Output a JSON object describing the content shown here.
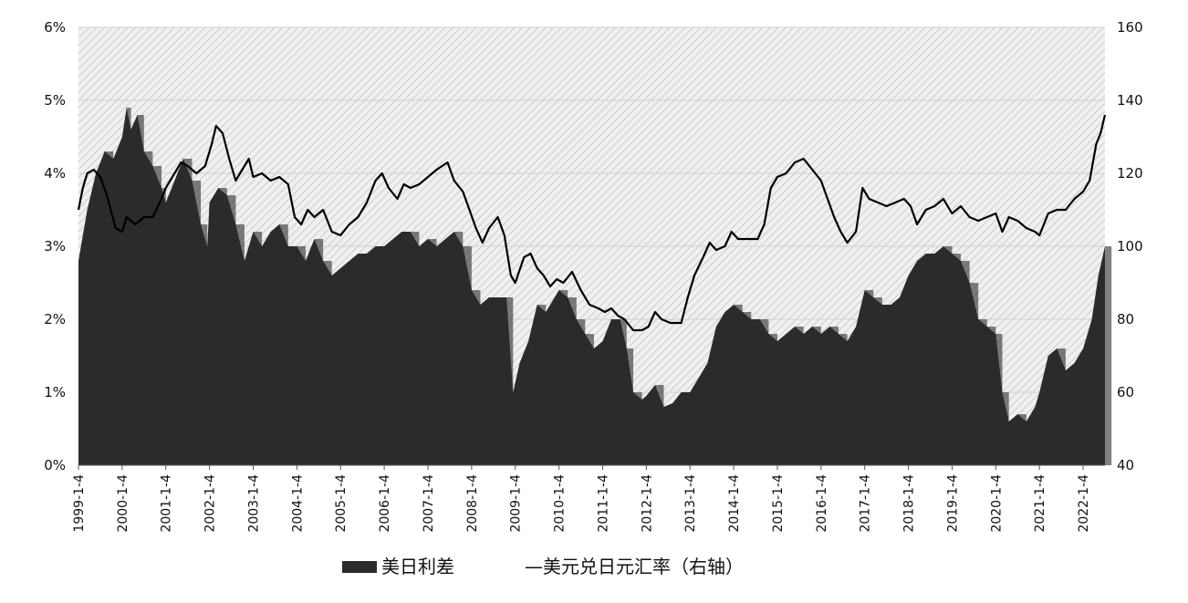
{
  "chart_data": {
    "type": "bar+line",
    "x_tick_labels": [
      "1999-1-4",
      "2000-1-4",
      "2001-1-4",
      "2002-1-4",
      "2003-1-4",
      "2004-1-4",
      "2005-1-4",
      "2006-1-4",
      "2007-1-4",
      "2008-1-4",
      "2009-1-4",
      "2010-1-4",
      "2011-1-4",
      "2012-1-4",
      "2013-1-4",
      "2014-1-4",
      "2015-1-4",
      "2016-1-4",
      "2017-1-4",
      "2018-1-4",
      "2019-1-4",
      "2020-1-4",
      "2021-1-4",
      "2022-1-4"
    ],
    "x_range": [
      1999.0,
      2022.5
    ],
    "y_left": {
      "min": 0,
      "max": 6,
      "ticks": [
        "0%",
        "1%",
        "2%",
        "3%",
        "4%",
        "5%",
        "6%"
      ]
    },
    "y_right": {
      "min": 40,
      "max": 160,
      "ticks": [
        "40",
        "60",
        "80",
        "100",
        "120",
        "140",
        "160"
      ]
    },
    "grid": true,
    "legend_position": "bottom-center",
    "series": [
      {
        "name": "美日利差",
        "kind": "bar",
        "axis": "left",
        "color": "#2b2b2b",
        "points": [
          [
            1999.0,
            2.8
          ],
          [
            1999.2,
            3.5
          ],
          [
            1999.4,
            4.0
          ],
          [
            1999.6,
            4.3
          ],
          [
            1999.8,
            4.2
          ],
          [
            2000.0,
            4.5
          ],
          [
            2000.1,
            4.9
          ],
          [
            2000.2,
            4.6
          ],
          [
            2000.35,
            4.8
          ],
          [
            2000.5,
            4.3
          ],
          [
            2000.7,
            4.1
          ],
          [
            2000.9,
            3.8
          ],
          [
            2001.0,
            3.6
          ],
          [
            2001.2,
            3.9
          ],
          [
            2001.4,
            4.2
          ],
          [
            2001.6,
            3.9
          ],
          [
            2001.8,
            3.3
          ],
          [
            2001.95,
            3.0
          ],
          [
            2002.0,
            3.6
          ],
          [
            2002.2,
            3.8
          ],
          [
            2002.4,
            3.7
          ],
          [
            2002.6,
            3.3
          ],
          [
            2002.8,
            2.8
          ],
          [
            2003.0,
            3.2
          ],
          [
            2003.2,
            3.0
          ],
          [
            2003.4,
            3.2
          ],
          [
            2003.6,
            3.3
          ],
          [
            2003.8,
            3.0
          ],
          [
            2004.0,
            3.0
          ],
          [
            2004.2,
            2.8
          ],
          [
            2004.4,
            3.1
          ],
          [
            2004.6,
            2.8
          ],
          [
            2004.8,
            2.6
          ],
          [
            2005.0,
            2.7
          ],
          [
            2005.2,
            2.8
          ],
          [
            2005.4,
            2.9
          ],
          [
            2005.6,
            2.9
          ],
          [
            2005.8,
            3.0
          ],
          [
            2006.0,
            3.0
          ],
          [
            2006.2,
            3.1
          ],
          [
            2006.4,
            3.2
          ],
          [
            2006.6,
            3.2
          ],
          [
            2006.8,
            3.0
          ],
          [
            2007.0,
            3.1
          ],
          [
            2007.2,
            3.0
          ],
          [
            2007.4,
            3.1
          ],
          [
            2007.6,
            3.2
          ],
          [
            2007.8,
            3.0
          ],
          [
            2008.0,
            2.4
          ],
          [
            2008.2,
            2.2
          ],
          [
            2008.4,
            2.3
          ],
          [
            2008.6,
            2.3
          ],
          [
            2008.8,
            2.3
          ],
          [
            2008.95,
            1.0
          ],
          [
            2009.1,
            1.4
          ],
          [
            2009.3,
            1.7
          ],
          [
            2009.5,
            2.2
          ],
          [
            2009.7,
            2.1
          ],
          [
            2009.9,
            2.3
          ],
          [
            2010.0,
            2.4
          ],
          [
            2010.2,
            2.3
          ],
          [
            2010.4,
            2.0
          ],
          [
            2010.6,
            1.8
          ],
          [
            2010.8,
            1.6
          ],
          [
            2011.0,
            1.7
          ],
          [
            2011.2,
            2.0
          ],
          [
            2011.4,
            2.0
          ],
          [
            2011.55,
            1.6
          ],
          [
            2011.7,
            1.0
          ],
          [
            2011.9,
            0.9
          ],
          [
            2012.0,
            0.95
          ],
          [
            2012.2,
            1.1
          ],
          [
            2012.4,
            0.8
          ],
          [
            2012.6,
            0.85
          ],
          [
            2012.8,
            1.0
          ],
          [
            2013.0,
            1.0
          ],
          [
            2013.2,
            1.2
          ],
          [
            2013.4,
            1.4
          ],
          [
            2013.6,
            1.9
          ],
          [
            2013.8,
            2.1
          ],
          [
            2014.0,
            2.2
          ],
          [
            2014.2,
            2.1
          ],
          [
            2014.4,
            2.0
          ],
          [
            2014.6,
            2.0
          ],
          [
            2014.8,
            1.8
          ],
          [
            2015.0,
            1.7
          ],
          [
            2015.2,
            1.8
          ],
          [
            2015.4,
            1.9
          ],
          [
            2015.6,
            1.8
          ],
          [
            2015.8,
            1.9
          ],
          [
            2016.0,
            1.8
          ],
          [
            2016.2,
            1.9
          ],
          [
            2016.4,
            1.8
          ],
          [
            2016.6,
            1.7
          ],
          [
            2016.8,
            1.9
          ],
          [
            2017.0,
            2.4
          ],
          [
            2017.2,
            2.3
          ],
          [
            2017.4,
            2.2
          ],
          [
            2017.6,
            2.2
          ],
          [
            2017.8,
            2.3
          ],
          [
            2018.0,
            2.6
          ],
          [
            2018.2,
            2.8
          ],
          [
            2018.4,
            2.9
          ],
          [
            2018.6,
            2.9
          ],
          [
            2018.8,
            3.0
          ],
          [
            2019.0,
            2.9
          ],
          [
            2019.2,
            2.8
          ],
          [
            2019.4,
            2.5
          ],
          [
            2019.6,
            2.0
          ],
          [
            2019.8,
            1.9
          ],
          [
            2020.0,
            1.8
          ],
          [
            2020.15,
            1.0
          ],
          [
            2020.3,
            0.6
          ],
          [
            2020.5,
            0.7
          ],
          [
            2020.7,
            0.6
          ],
          [
            2020.9,
            0.8
          ],
          [
            2021.0,
            1.0
          ],
          [
            2021.2,
            1.5
          ],
          [
            2021.4,
            1.6
          ],
          [
            2021.6,
            1.3
          ],
          [
            2021.8,
            1.4
          ],
          [
            2022.0,
            1.6
          ],
          [
            2022.2,
            2.0
          ],
          [
            2022.35,
            2.6
          ],
          [
            2022.5,
            3.0
          ]
        ]
      },
      {
        "name": "美元兑日元汇率（右轴）",
        "kind": "line",
        "axis": "right",
        "color": "#000000",
        "points": [
          [
            1999.0,
            110
          ],
          [
            1999.1,
            116
          ],
          [
            1999.2,
            120
          ],
          [
            1999.35,
            121
          ],
          [
            1999.5,
            119
          ],
          [
            1999.65,
            114
          ],
          [
            1999.85,
            105
          ],
          [
            2000.0,
            104
          ],
          [
            2000.1,
            108
          ],
          [
            2000.3,
            106
          ],
          [
            2000.5,
            108
          ],
          [
            2000.7,
            108
          ],
          [
            2000.9,
            113
          ],
          [
            2001.0,
            116
          ],
          [
            2001.2,
            120
          ],
          [
            2001.35,
            123
          ],
          [
            2001.5,
            122
          ],
          [
            2001.7,
            120
          ],
          [
            2001.9,
            122
          ],
          [
            2002.05,
            128
          ],
          [
            2002.15,
            133
          ],
          [
            2002.3,
            131
          ],
          [
            2002.45,
            124
          ],
          [
            2002.6,
            118
          ],
          [
            2002.75,
            121
          ],
          [
            2002.9,
            124
          ],
          [
            2003.0,
            119
          ],
          [
            2003.2,
            120
          ],
          [
            2003.4,
            118
          ],
          [
            2003.6,
            119
          ],
          [
            2003.8,
            117
          ],
          [
            2003.95,
            108
          ],
          [
            2004.1,
            106
          ],
          [
            2004.25,
            110
          ],
          [
            2004.4,
            108
          ],
          [
            2004.6,
            110
          ],
          [
            2004.8,
            104
          ],
          [
            2005.0,
            103
          ],
          [
            2005.2,
            106
          ],
          [
            2005.4,
            108
          ],
          [
            2005.6,
            112
          ],
          [
            2005.8,
            118
          ],
          [
            2005.95,
            120
          ],
          [
            2006.1,
            116
          ],
          [
            2006.3,
            113
          ],
          [
            2006.45,
            117
          ],
          [
            2006.6,
            116
          ],
          [
            2006.8,
            117
          ],
          [
            2007.0,
            119
          ],
          [
            2007.2,
            121
          ],
          [
            2007.45,
            123
          ],
          [
            2007.6,
            118
          ],
          [
            2007.8,
            115
          ],
          [
            2007.95,
            110
          ],
          [
            2008.1,
            105
          ],
          [
            2008.25,
            101
          ],
          [
            2008.4,
            105
          ],
          [
            2008.6,
            108
          ],
          [
            2008.75,
            103
          ],
          [
            2008.9,
            92
          ],
          [
            2009.0,
            90
          ],
          [
            2009.2,
            97
          ],
          [
            2009.35,
            98
          ],
          [
            2009.5,
            94
          ],
          [
            2009.65,
            92
          ],
          [
            2009.8,
            89
          ],
          [
            2009.95,
            91
          ],
          [
            2010.1,
            90
          ],
          [
            2010.3,
            93
          ],
          [
            2010.5,
            88
          ],
          [
            2010.7,
            84
          ],
          [
            2010.9,
            83
          ],
          [
            2011.05,
            82
          ],
          [
            2011.2,
            83
          ],
          [
            2011.35,
            81
          ],
          [
            2011.5,
            80
          ],
          [
            2011.7,
            77
          ],
          [
            2011.9,
            77
          ],
          [
            2012.05,
            78
          ],
          [
            2012.2,
            82
          ],
          [
            2012.35,
            80
          ],
          [
            2012.55,
            79
          ],
          [
            2012.8,
            79
          ],
          [
            2012.95,
            86
          ],
          [
            2013.1,
            92
          ],
          [
            2013.3,
            97
          ],
          [
            2013.45,
            101
          ],
          [
            2013.6,
            99
          ],
          [
            2013.8,
            100
          ],
          [
            2013.95,
            104
          ],
          [
            2014.1,
            102
          ],
          [
            2014.3,
            102
          ],
          [
            2014.55,
            102
          ],
          [
            2014.7,
            106
          ],
          [
            2014.85,
            116
          ],
          [
            2015.0,
            119
          ],
          [
            2015.2,
            120
          ],
          [
            2015.4,
            123
          ],
          [
            2015.6,
            124
          ],
          [
            2015.8,
            121
          ],
          [
            2016.0,
            118
          ],
          [
            2016.15,
            113
          ],
          [
            2016.3,
            108
          ],
          [
            2016.45,
            104
          ],
          [
            2016.6,
            101
          ],
          [
            2016.8,
            104
          ],
          [
            2016.95,
            116
          ],
          [
            2017.1,
            113
          ],
          [
            2017.3,
            112
          ],
          [
            2017.5,
            111
          ],
          [
            2017.7,
            112
          ],
          [
            2017.9,
            113
          ],
          [
            2018.05,
            111
          ],
          [
            2018.2,
            106
          ],
          [
            2018.4,
            110
          ],
          [
            2018.6,
            111
          ],
          [
            2018.8,
            113
          ],
          [
            2019.0,
            109
          ],
          [
            2019.2,
            111
          ],
          [
            2019.4,
            108
          ],
          [
            2019.6,
            107
          ],
          [
            2019.8,
            108
          ],
          [
            2020.0,
            109
          ],
          [
            2020.15,
            104
          ],
          [
            2020.3,
            108
          ],
          [
            2020.5,
            107
          ],
          [
            2020.7,
            105
          ],
          [
            2020.9,
            104
          ],
          [
            2021.0,
            103
          ],
          [
            2021.2,
            109
          ],
          [
            2021.4,
            110
          ],
          [
            2021.6,
            110
          ],
          [
            2021.8,
            113
          ],
          [
            2022.0,
            115
          ],
          [
            2022.15,
            118
          ],
          [
            2022.3,
            128
          ],
          [
            2022.4,
            131
          ],
          [
            2022.5,
            136
          ]
        ]
      }
    ]
  },
  "legend": {
    "bar_label": "美日利差",
    "line_label": "—美元兑日元汇率（右轴）"
  }
}
